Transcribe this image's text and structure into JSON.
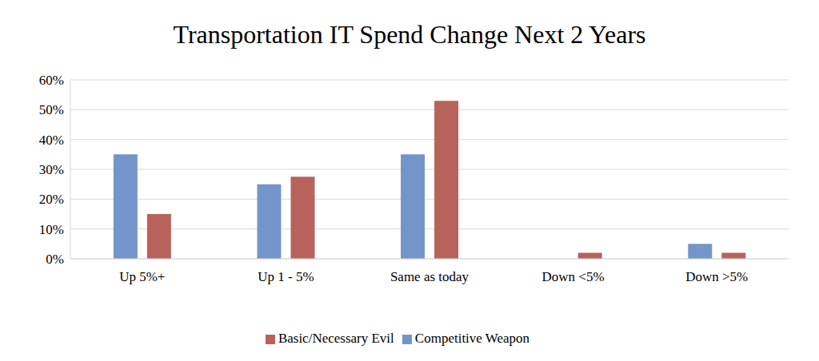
{
  "chart_data": {
    "type": "bar",
    "title": "Transportation IT Spend Change Next 2 Years",
    "categories": [
      "Up 5%+",
      "Up 1 - 5%",
      "Same as today",
      "Down <5%",
      "Down >5%"
    ],
    "series": [
      {
        "name": "Competitive Weapon",
        "color": "#7395c9",
        "values": [
          35,
          25,
          35,
          0,
          5
        ]
      },
      {
        "name": "Basic/Necessary Evil",
        "color": "#b8625c",
        "values": [
          15,
          27.5,
          53,
          2,
          2
        ]
      }
    ],
    "ylim": [
      0,
      60
    ],
    "yticks": [
      {
        "value": 0,
        "label": "0%"
      },
      {
        "value": 10,
        "label": "10%"
      },
      {
        "value": 20,
        "label": "20%"
      },
      {
        "value": 30,
        "label": "30%"
      },
      {
        "value": 40,
        "label": "40%"
      },
      {
        "value": 50,
        "label": "50%"
      },
      {
        "value": 60,
        "label": "60%"
      }
    ],
    "grid": true,
    "legend": "bottom"
  }
}
